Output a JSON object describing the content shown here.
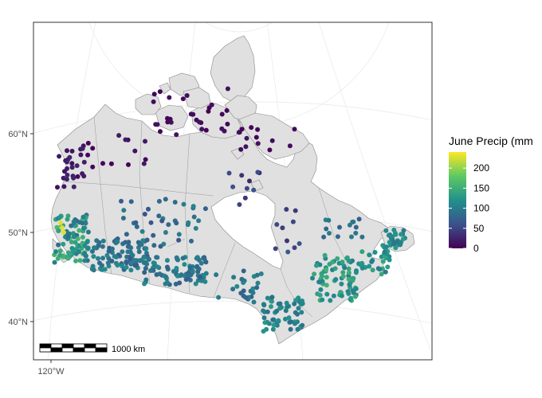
{
  "map": {
    "latitude_ticks": [
      {
        "label": "60°N",
        "lat": 60
      },
      {
        "label": "50°N",
        "lat": 50
      },
      {
        "label": "40°N",
        "lat": 40
      }
    ],
    "longitude_ticks": [
      {
        "label": "120°W",
        "lon": -120
      }
    ],
    "scale_bar": {
      "label": "1000 km",
      "segments": 6
    },
    "land_fill": "#e0e0e0",
    "land_stroke": "#888888",
    "water_fill": "#ffffff",
    "graticule_color": "#ebebeb"
  },
  "legend": {
    "title": "June Precip (mm",
    "labels": [
      "200",
      "150",
      "100",
      "50",
      "0"
    ],
    "values": [
      200,
      150,
      100,
      50,
      0
    ],
    "min": 0,
    "max": 240,
    "colormap": "viridis",
    "colors": [
      "#440154",
      "#3b528b",
      "#21908c",
      "#5dc963",
      "#fde725"
    ]
  }
}
